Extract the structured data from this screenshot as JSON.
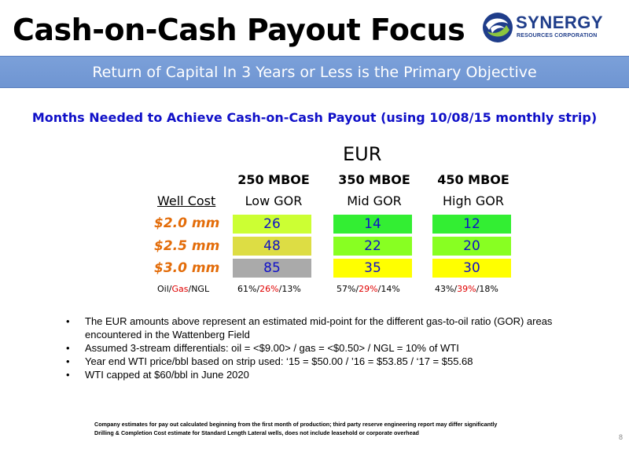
{
  "header": {
    "title": "Cash-on-Cash Payout Focus",
    "logo_word": "SYNERGY",
    "logo_sub": "RESOURCES CORPORATION"
  },
  "banner": "Return of Capital In 3 Years or Less is the Primary Objective",
  "subtitle": "Months Needed to Achieve Cash-on-Cash Payout (using 10/08/15 monthly strip)",
  "table": {
    "eur_label": "EUR",
    "row_header": "Well Cost",
    "columns": [
      {
        "eur": "250 MBOE",
        "gor": "Low GOR"
      },
      {
        "eur": "350 MBOE",
        "gor": "Mid GOR"
      },
      {
        "eur": "450 MBOE",
        "gor": "High GOR"
      }
    ],
    "rows": [
      {
        "label": "$2.0  mm",
        "values": [
          "26",
          "14",
          "12"
        ],
        "colors": [
          "#ccff33",
          "#33ee33",
          "#33ee33"
        ]
      },
      {
        "label": "$2.5  mm",
        "values": [
          "48",
          "22",
          "20"
        ],
        "colors": [
          "#dddd44",
          "#88ff22",
          "#88ff22"
        ]
      },
      {
        "label": "$3.0  mm",
        "values": [
          "85",
          "35",
          "30"
        ],
        "colors": [
          "#aaaaaa",
          "#ffff00",
          "#ffff00"
        ]
      }
    ],
    "mix_label": {
      "a": "Oil/",
      "b": "Gas",
      "c": "/NGL"
    },
    "mix": [
      {
        "oil": "61%/",
        "gas": "26%",
        "ngl": "/13%"
      },
      {
        "oil": "57%/",
        "gas": "29%",
        "ngl": "/14%"
      },
      {
        "oil": "43%/",
        "gas": "39%",
        "ngl": "/18%"
      }
    ]
  },
  "bullets": [
    "The EUR amounts above represent an estimated mid-point for the different gas-to-oil ratio (GOR) areas encountered in the Wattenberg Field",
    "Assumed 3-stream differentials:  oil = <$9.00> / gas = <$0.50> / NGL = 10% of WTI",
    "Year end WTI price/bbl based on strip used:  ‘15 = $50.00 / ’16 = $53.85 / ‘17 = $55.68",
    "WTI capped at $60/bbl in June 2020"
  ],
  "footnotes": [
    "Company estimates for pay out calculated beginning from the first month of production; third party reserve engineering report may differ significantly",
    "Drilling & Completion Cost estimate for Standard Length Lateral wells, does not include leasehold or corporate overhead"
  ],
  "page_number": "8"
}
